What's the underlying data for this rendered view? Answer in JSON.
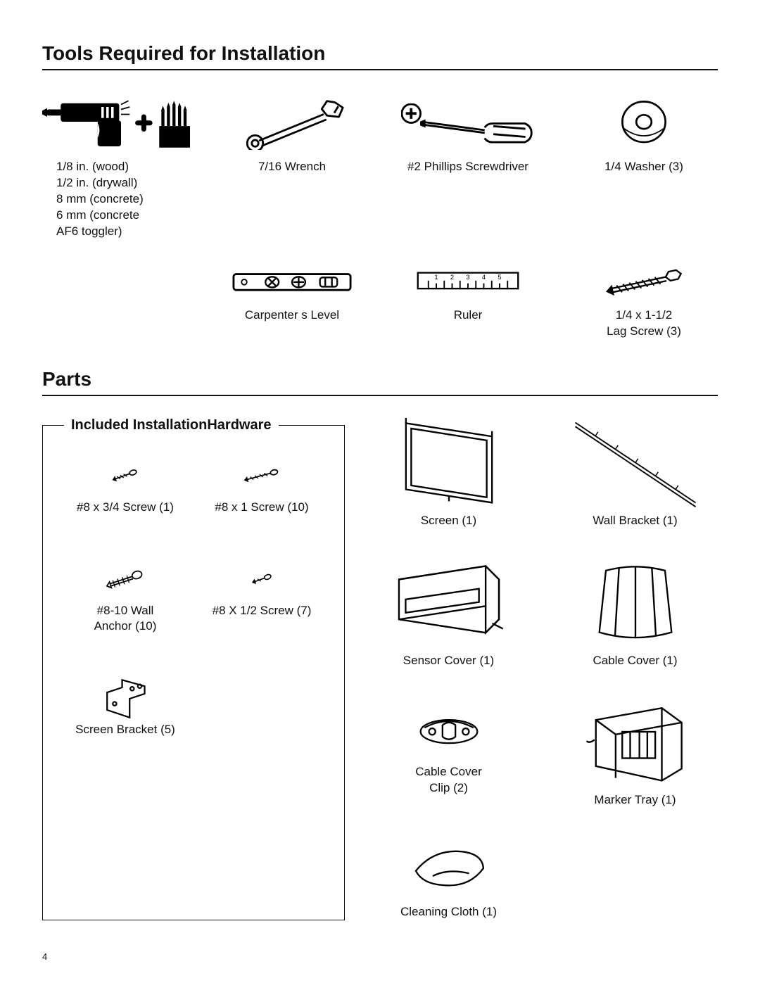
{
  "tools_heading": "Tools Required for Installation",
  "parts_heading": "Parts",
  "hardware_legend": "Included InstallationHardware",
  "page_number": "4",
  "tools": {
    "drill": "1/8 in. (wood)\n1/2 in. (drywall)\n8 mm (concrete)\n6 mm (concrete\nAF6 toggler)",
    "wrench": "7/16  Wrench",
    "screwdriver": "#2 Phillips Screwdriver",
    "washer": "1/4  Washer (3)",
    "level": "Carpenter s Level",
    "ruler": "Ruler",
    "lagscrew": "1/4  x 1-1/2\nLag Screw (3)"
  },
  "hardware": {
    "h1": "#8 x 3/4  Screw (1)",
    "h2": "#8 x 1  Screw (10)",
    "h3": "#8-10 Wall\nAnchor (10)",
    "h4": "#8 X 1/2  Screw (7)",
    "h5": "Screen Bracket (5)"
  },
  "parts": {
    "screen": "Screen (1)",
    "wallbracket": "Wall Bracket (1)",
    "sensorcover": "Sensor Cover (1)",
    "cablecover": "Cable Cover (1)",
    "clip": "Cable Cover\nClip (2)",
    "markertray": "Marker Tray (1)",
    "cloth": "Cleaning Cloth (1)"
  },
  "style": {
    "text_color": "#111111",
    "background": "#ffffff",
    "stroke_width": 2,
    "title_fontsize": 28,
    "label_fontsize": 17,
    "legend_fontsize": 20
  }
}
